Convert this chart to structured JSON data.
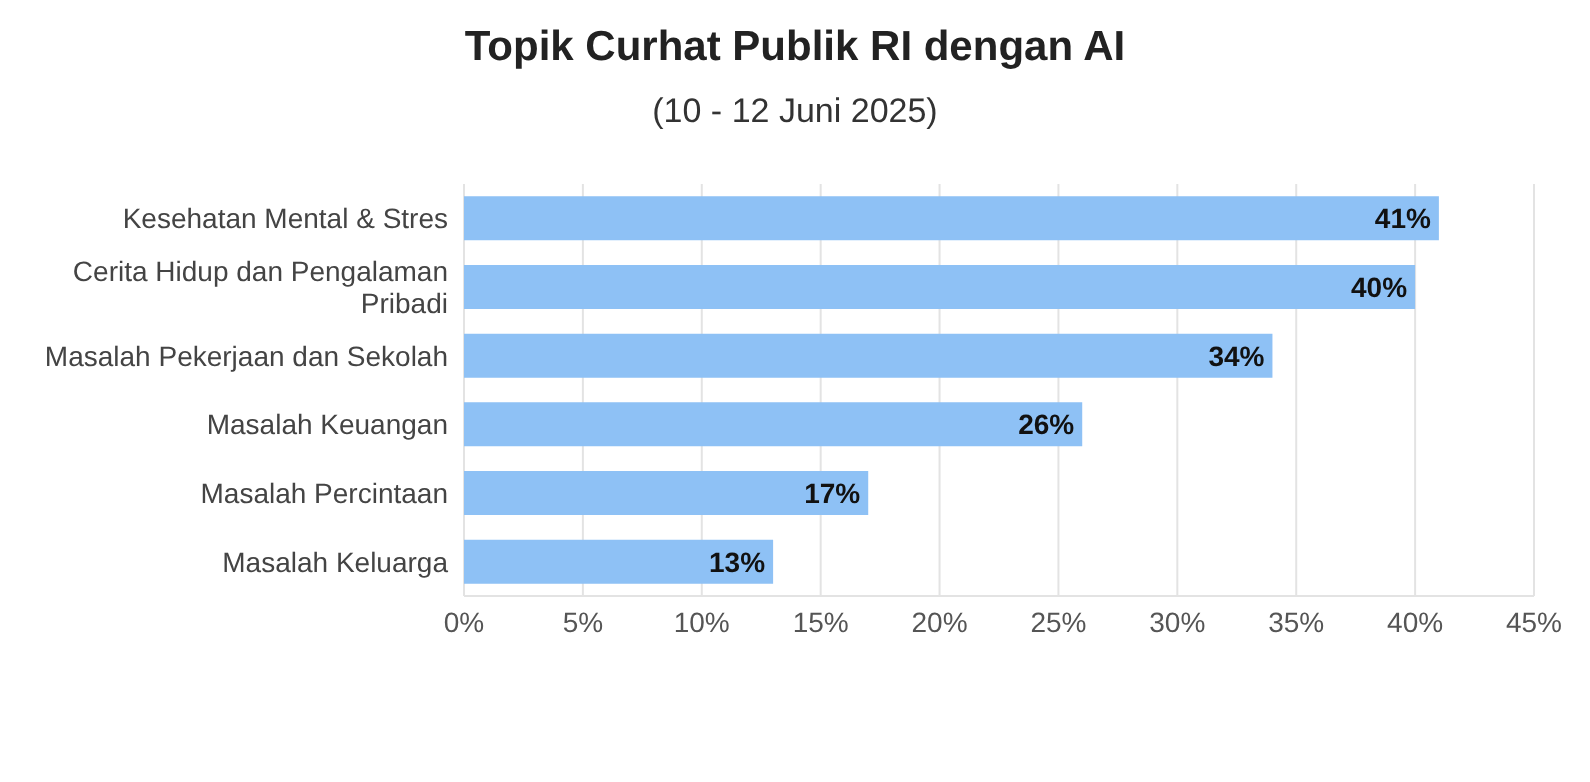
{
  "chart_data": {
    "type": "bar",
    "orientation": "horizontal",
    "title": "Topik Curhat Publik RI dengan AI",
    "subtitle": "(10 - 12 Juni 2025)",
    "categories": [
      "Kesehatan Mental & Stres",
      "Cerita Hidup dan Pengalaman Pribadi",
      "Masalah Pekerjaan dan Sekolah",
      "Masalah Keuangan",
      "Masalah Percintaan",
      "Masalah Keluarga"
    ],
    "values": [
      41,
      40,
      34,
      26,
      17,
      13
    ],
    "value_labels": [
      "41%",
      "40%",
      "34%",
      "26%",
      "17%",
      "13%"
    ],
    "color": "#8ec1f5",
    "xlim": [
      0,
      45
    ],
    "xticks": [
      {
        "value": 0,
        "label": "0%"
      },
      {
        "value": 5,
        "label": "5%"
      },
      {
        "value": 10,
        "label": "10%"
      },
      {
        "value": 15,
        "label": "15%"
      },
      {
        "value": 20,
        "label": "20%"
      },
      {
        "value": 25,
        "label": "25%"
      },
      {
        "value": 30,
        "label": "30%"
      },
      {
        "value": 35,
        "label": "35%"
      },
      {
        "value": 40,
        "label": "40%"
      },
      {
        "value": 45,
        "label": "45%"
      }
    ],
    "grid": "x"
  }
}
